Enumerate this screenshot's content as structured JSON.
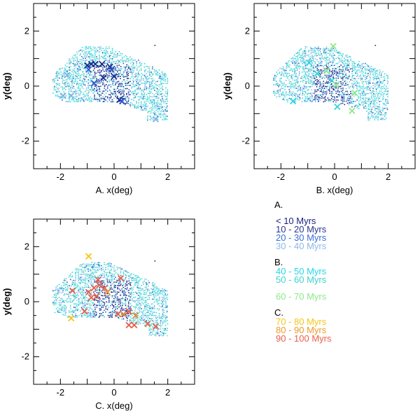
{
  "chart_data": [
    {
      "type": "scatter",
      "panel": "A",
      "xlabel": "A. x(deg)",
      "ylabel": "y(deg)",
      "xlim": [
        -3,
        3
      ],
      "ylim": [
        -3,
        3
      ],
      "xticks": [
        "-2",
        "0",
        "2"
      ],
      "yticks": [
        "-2",
        "0",
        "2"
      ],
      "grid": false,
      "background_dots": "dense field of small dots, colored blue to cyan, spanning roughly x -2.3..2.0, y -1.2..1.5",
      "markers": [
        {
          "x": -1.0,
          "y": 0.75,
          "color": "#1a2a8a"
        },
        {
          "x": -0.85,
          "y": 0.8,
          "color": "#1a2a8a"
        },
        {
          "x": -0.7,
          "y": 0.8,
          "color": "#1a2a8a"
        },
        {
          "x": -0.45,
          "y": 0.8,
          "color": "#1a2a8a"
        },
        {
          "x": -0.15,
          "y": 0.7,
          "color": "#1a2a8a"
        },
        {
          "x": 0.0,
          "y": 0.35,
          "color": "#1a2a8a"
        },
        {
          "x": -0.4,
          "y": 0.3,
          "color": "#1a2a8a"
        },
        {
          "x": 0.2,
          "y": -0.5,
          "color": "#1a2a8a"
        },
        {
          "x": -0.95,
          "y": 0.6,
          "color": "#2f5fd0"
        },
        {
          "x": -0.1,
          "y": 0.6,
          "color": "#2f5fd0"
        },
        {
          "x": 0.3,
          "y": -0.55,
          "color": "#2f5fd0"
        },
        {
          "x": -0.75,
          "y": 0.1,
          "color": "#2f5fd0"
        },
        {
          "x": -1.75,
          "y": 0.4,
          "color": "#7fb2e5"
        },
        {
          "x": -1.9,
          "y": -0.35,
          "color": "#7fb2e5"
        },
        {
          "x": -1.6,
          "y": -0.35,
          "color": "#7fb2e5"
        },
        {
          "x": 1.55,
          "y": -1.2,
          "color": "#7fb2e5"
        }
      ]
    },
    {
      "type": "scatter",
      "panel": "B",
      "xlabel": "B. x(deg)",
      "ylabel": "y(deg)",
      "xlim": [
        -3,
        3
      ],
      "ylim": [
        -3,
        3
      ],
      "xticks": [
        "-2",
        "0",
        "2"
      ],
      "yticks": [
        "-2",
        "0",
        "2"
      ],
      "grid": false,
      "background_dots": "dense field of small dots, colored blue to cyan, spanning roughly x -2.3..2.0, y -1.2..1.5",
      "markers": [
        {
          "x": -0.05,
          "y": 1.45,
          "color": "#8ee88a"
        },
        {
          "x": -0.95,
          "y": 0.85,
          "color": "#2ed8e0"
        },
        {
          "x": -0.65,
          "y": 0.45,
          "color": "#33d6d6"
        },
        {
          "x": -0.3,
          "y": 0.55,
          "color": "#8ee88a"
        },
        {
          "x": -0.1,
          "y": 0.2,
          "color": "#33d6d6"
        },
        {
          "x": 0.05,
          "y": 0.05,
          "color": "#8ee88a"
        },
        {
          "x": 0.75,
          "y": -0.25,
          "color": "#8ee88a"
        },
        {
          "x": 0.1,
          "y": -0.75,
          "color": "#33d6d6"
        },
        {
          "x": 0.65,
          "y": -0.9,
          "color": "#8ee88a"
        },
        {
          "x": -1.55,
          "y": -0.55,
          "color": "#2ed8e0"
        }
      ]
    },
    {
      "type": "scatter",
      "panel": "C",
      "xlabel": "C. x(deg)",
      "ylabel": "y(deg)",
      "xlim": [
        -3,
        3
      ],
      "ylim": [
        -3,
        3
      ],
      "xticks": [
        "-2",
        "0",
        "2"
      ],
      "yticks": [
        "-2",
        "0",
        "2"
      ],
      "grid": false,
      "background_dots": "dense field of small dots, colored blue to cyan, spanning roughly x -2.3..2.0, y -1.2..1.5",
      "markers": [
        {
          "x": -0.95,
          "y": 1.65,
          "color": "#f5c518"
        },
        {
          "x": -1.55,
          "y": 0.4,
          "color": "#e8604a"
        },
        {
          "x": -0.95,
          "y": 0.35,
          "color": "#e8604a"
        },
        {
          "x": -0.75,
          "y": 0.5,
          "color": "#e8604a"
        },
        {
          "x": -0.55,
          "y": 0.6,
          "color": "#e8604a"
        },
        {
          "x": -0.6,
          "y": 0.8,
          "color": "#e8604a"
        },
        {
          "x": -0.35,
          "y": 0.5,
          "color": "#e8604a"
        },
        {
          "x": -0.25,
          "y": 0.35,
          "color": "#ef8a2a"
        },
        {
          "x": -0.85,
          "y": 0.15,
          "color": "#e8604a"
        },
        {
          "x": -0.65,
          "y": 0.2,
          "color": "#e8604a"
        },
        {
          "x": -1.1,
          "y": -0.35,
          "color": "#e8604a"
        },
        {
          "x": 0.25,
          "y": 0.85,
          "color": "#e8604a"
        },
        {
          "x": 0.15,
          "y": -0.45,
          "color": "#e8604a"
        },
        {
          "x": 0.35,
          "y": -0.45,
          "color": "#ef8a2a"
        },
        {
          "x": 0.55,
          "y": -0.35,
          "color": "#e8604a"
        },
        {
          "x": 0.8,
          "y": -0.5,
          "color": "#ef8a2a"
        },
        {
          "x": 0.55,
          "y": -0.85,
          "color": "#e8604a"
        },
        {
          "x": 0.75,
          "y": -0.85,
          "color": "#e8604a"
        },
        {
          "x": 1.25,
          "y": -0.8,
          "color": "#e8604a"
        },
        {
          "x": 1.55,
          "y": -0.9,
          "color": "#e8604a"
        },
        {
          "x": -1.6,
          "y": -0.6,
          "color": "#f5c518"
        }
      ]
    }
  ],
  "legend": {
    "groups": [
      {
        "header": "A.",
        "items": [
          {
            "label": "< 10 Myrs",
            "color": "#1a237e"
          },
          {
            "label": "10 - 20 Myrs",
            "color": "#283593"
          },
          {
            "label": "20 - 30 Myrs",
            "color": "#3a6fd8"
          },
          {
            "label": "30 - 40 Myrs",
            "color": "#8fb8e8"
          }
        ]
      },
      {
        "header": "B.",
        "items": [
          {
            "label": "40 - 50 Myrs",
            "color": "#22d8e6"
          },
          {
            "label": "50 - 60 Myrs",
            "color": "#3fd0d0"
          },
          {
            "label": "60 - 70 Myrs",
            "color": "#8ee88a"
          }
        ]
      },
      {
        "header": "C.",
        "items": [
          {
            "label": "70 - 80 Myrs",
            "color": "#f5c518"
          },
          {
            "label": "80 - 90 Myrs",
            "color": "#ef9a2a"
          },
          {
            "label": "90 - 100 Myrs",
            "color": "#e8604a"
          }
        ]
      }
    ]
  }
}
